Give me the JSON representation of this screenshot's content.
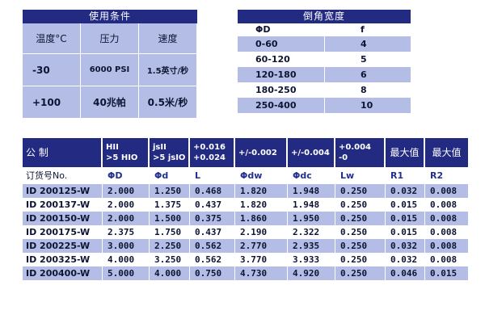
{
  "conditions": {
    "title": "使用条件",
    "headers": [
      "温度°C",
      "压力",
      "速度"
    ],
    "rows": [
      [
        "-30",
        "6000 PSI",
        "1.5英寸/秒"
      ],
      [
        "+100",
        "40兆帕",
        "0.5米/秒"
      ]
    ]
  },
  "chamfer": {
    "title": "倒角宽度",
    "headers": [
      "ΦD",
      "f"
    ],
    "rows": [
      [
        "0-60",
        "4"
      ],
      [
        "60-120",
        "5"
      ],
      [
        "120-180",
        "6"
      ],
      [
        "180-250",
        "8"
      ],
      [
        "250-400",
        "10"
      ]
    ]
  },
  "main": {
    "header_cells": [
      [
        "公     制"
      ],
      [
        "HII",
        ">5 HIO"
      ],
      [
        "jsII",
        ">5 jsIO"
      ],
      [
        "+0.016",
        "+0.024"
      ],
      [
        "+/-0.002"
      ],
      [
        "+/-0.004"
      ],
      [
        "+0.004",
        "-0"
      ],
      [
        "最大值"
      ],
      [
        "最大值"
      ]
    ],
    "sub_headers": [
      "订货号No.",
      "ΦD",
      "Φd",
      "L",
      "Φdw",
      "Φdc",
      "Lw",
      "R1",
      "R2"
    ],
    "rows": [
      [
        "ID 200125-W",
        "2.000",
        "1.250",
        "0.468",
        "1.820",
        "1.948",
        "0.250",
        "0.032",
        "0.008"
      ],
      [
        "ID 200137-W",
        "2.000",
        "1.375",
        "0.437",
        "1.820",
        "1.948",
        "0.250",
        "0.015",
        "0.008"
      ],
      [
        "ID 200150-W",
        "2.000",
        "1.500",
        "0.375",
        "1.860",
        "1.950",
        "0.250",
        "0.015",
        "0.008"
      ],
      [
        "ID 200175-W",
        "2.375",
        "1.750",
        "0.437",
        "2.190",
        "2.322",
        "0.250",
        "0.015",
        "0.008"
      ],
      [
        "ID 200225-W",
        "3.000",
        "2.250",
        "0.562",
        "2.770",
        "2.935",
        "0.250",
        "0.032",
        "0.008"
      ],
      [
        "ID 200325-W",
        "4.000",
        "3.250",
        "0.562",
        "3.770",
        "3.933",
        "0.250",
        "0.032",
        "0.008"
      ],
      [
        "ID 200400-W",
        "5.000",
        "4.000",
        "0.750",
        "4.730",
        "4.920",
        "0.250",
        "0.046",
        "0.015"
      ]
    ]
  }
}
